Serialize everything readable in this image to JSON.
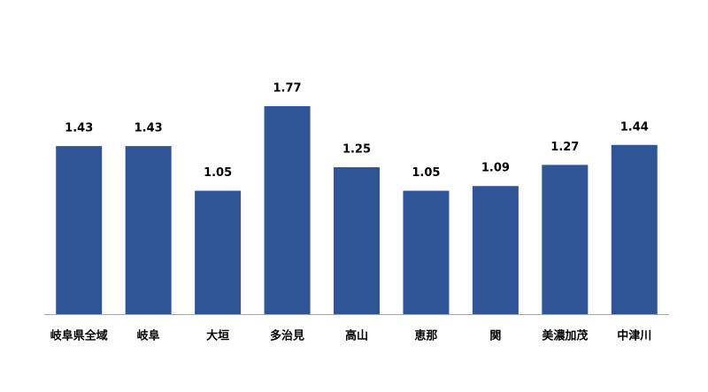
{
  "chart_data": {
    "type": "bar",
    "categories": [
      "岐阜県全域",
      "岐阜",
      "大垣",
      "多治見",
      "高山",
      "恵那",
      "関",
      "美濃加茂",
      "中津川"
    ],
    "values": [
      1.43,
      1.43,
      1.05,
      1.77,
      1.25,
      1.05,
      1.09,
      1.27,
      1.44
    ],
    "color": "#2f5597",
    "ylim": [
      0,
      2
    ]
  }
}
